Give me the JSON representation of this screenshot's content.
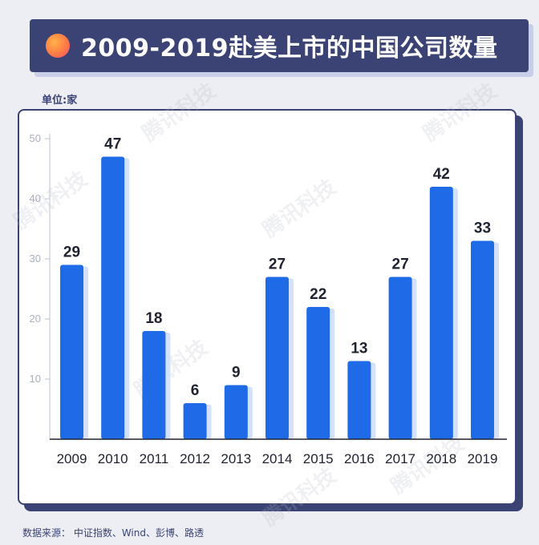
{
  "title": "2009-2019赴美上市的中国公司数量",
  "unit_label": "单位:家",
  "source": "数据来源：  中证指数、Wind、彭博、路透",
  "watermark": "腾讯科技",
  "colors": {
    "bar": "#1f6ae6",
    "bar_shadow": "#d3e1fb",
    "navy": "#3a4373",
    "axis_tick": "#bdc3cf",
    "background": "#eceef3"
  },
  "chart_data": {
    "type": "bar",
    "title": "2009-2019赴美上市的中国公司数量",
    "ylabel": "单位:家",
    "categories": [
      "2009",
      "2010",
      "2011",
      "2012",
      "2013",
      "2014",
      "2015",
      "2016",
      "2017",
      "2018",
      "2019"
    ],
    "values": [
      29,
      47,
      18,
      6,
      9,
      27,
      22,
      13,
      27,
      42,
      33
    ],
    "yticks": [
      10,
      20,
      30,
      40,
      50
    ],
    "ylim": [
      0,
      50
    ],
    "grid": false,
    "data_labels": true
  }
}
